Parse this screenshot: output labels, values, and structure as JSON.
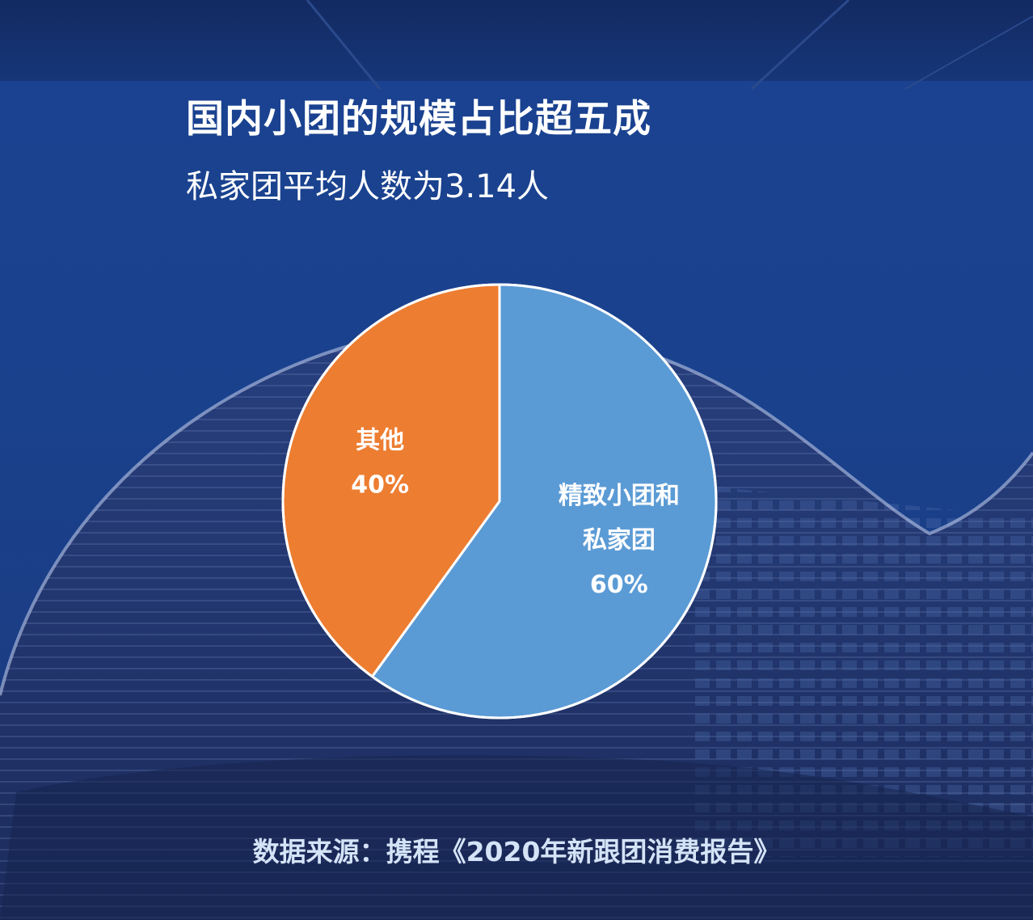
{
  "header": {
    "title": "国内小团的规模占比超五成",
    "subtitle": "私家团平均人数为3.14人"
  },
  "footer": {
    "source": "数据来源：携程《2020年新跟团消费报告》"
  },
  "chart_data": {
    "type": "pie",
    "title": "国内小团的规模占比超五成",
    "subtitle": "私家团平均人数为3.14人",
    "start_angle_deg": 0,
    "direction": "clockwise",
    "slices": [
      {
        "label_lines": [
          "精致小团和",
          "私家团"
        ],
        "value": 60,
        "value_label": "60%",
        "color": "#5b9bd5"
      },
      {
        "label_lines": [
          "其他"
        ],
        "value": 40,
        "value_label": "40%",
        "color": "#ed7d31"
      }
    ],
    "legend": "none",
    "source": "数据来源：携程《2020年新跟团消费报告》"
  }
}
